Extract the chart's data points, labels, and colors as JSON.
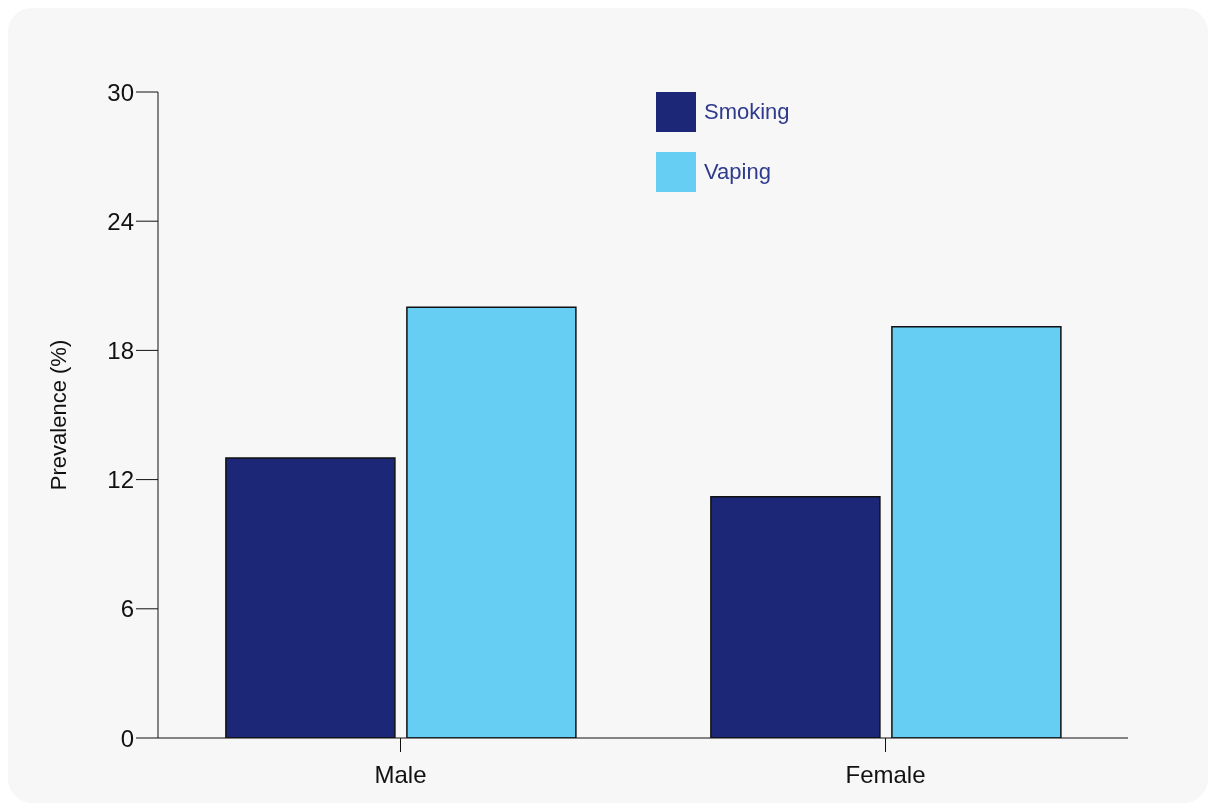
{
  "chart_data": {
    "type": "bar",
    "categories": [
      "Male",
      "Female"
    ],
    "ylabel": "Prevalence (%)",
    "series": [
      {
        "name": "Smoking",
        "color": "#1c2877",
        "values": [
          13.0,
          11.2
        ]
      },
      {
        "name": "Vaping",
        "color": "#66cdf3",
        "values": [
          20.0,
          19.1
        ]
      }
    ],
    "ylim": [
      0,
      30
    ],
    "yticks": [
      0,
      6,
      12,
      18,
      24,
      30
    ],
    "grid": false,
    "legend": "top"
  }
}
